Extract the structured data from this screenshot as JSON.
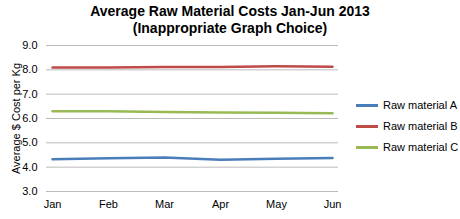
{
  "chart_data": {
    "type": "line",
    "title": "Average Raw Material Costs Jan-Jun 2013",
    "subtitle": "(Inappropriate Graph Choice)",
    "y_label": "Average $ Cost per Kg",
    "categories": [
      "Jan",
      "Feb",
      "Mar",
      "Apr",
      "May",
      "Jun"
    ],
    "series": [
      {
        "name": "Raw material A",
        "color": "#4a7ebb",
        "values": [
          4.33,
          4.37,
          4.4,
          4.3,
          4.35,
          4.38
        ]
      },
      {
        "name": "Raw material B",
        "color": "#be4b48",
        "values": [
          8.1,
          8.1,
          8.12,
          8.12,
          8.15,
          8.13
        ]
      },
      {
        "name": "Raw material C",
        "color": "#98b954",
        "values": [
          6.3,
          6.3,
          6.27,
          6.25,
          6.24,
          6.22
        ]
      }
    ],
    "ylim": [
      3,
      9
    ],
    "yticks": [
      3,
      4,
      5,
      6,
      7,
      8,
      9
    ],
    "grid": true,
    "legend": "right"
  }
}
